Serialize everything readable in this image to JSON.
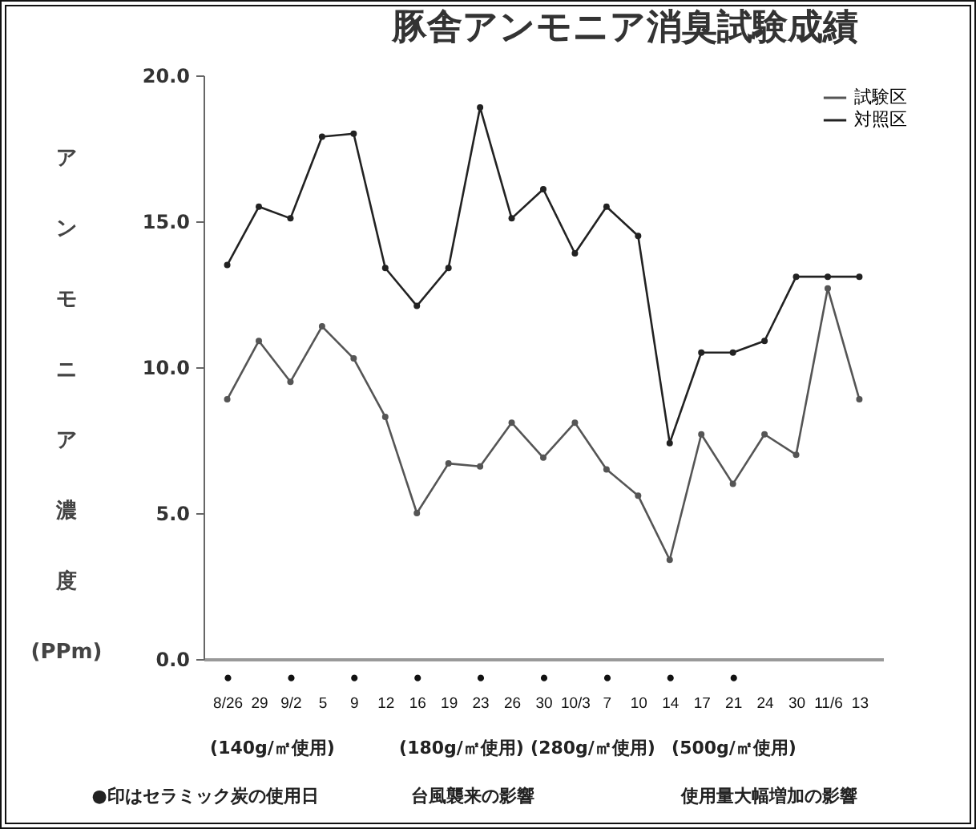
{
  "chart_data": {
    "type": "line",
    "title": "豚舎アンモニア消臭試験成績",
    "ylabel": "アンモニア濃度(PPm)",
    "categories": [
      "●\n8/26",
      "29",
      "●\n9/2",
      "5",
      "●\n9",
      "12",
      "●\n16",
      "19",
      "●\n23",
      "26",
      "●\n30",
      "10/3",
      "●\n7",
      "10",
      "●\n14",
      "17",
      "●\n21",
      "24",
      "30",
      "11/6",
      "13"
    ],
    "series": [
      {
        "name": "試験区",
        "color": "#555555",
        "values": [
          8.9,
          10.9,
          9.5,
          11.4,
          10.3,
          8.3,
          5.0,
          6.7,
          6.6,
          8.1,
          6.9,
          8.1,
          6.5,
          5.6,
          3.4,
          7.7,
          6.0,
          7.7,
          7.0,
          12.7,
          8.9
        ]
      },
      {
        "name": "対照区",
        "color": "#222222",
        "values": [
          13.5,
          15.5,
          15.1,
          17.9,
          18.0,
          13.4,
          12.1,
          13.4,
          18.9,
          15.1,
          16.1,
          13.9,
          15.5,
          14.5,
          7.4,
          10.5,
          10.5,
          10.9,
          13.1,
          13.1,
          13.1
        ]
      }
    ],
    "ylim": [
      0,
      20
    ],
    "yticks": [
      {
        "value": 0,
        "label": "0.0"
      },
      {
        "value": 5,
        "label": "5.0"
      },
      {
        "value": 10,
        "label": "10.0"
      },
      {
        "value": 15,
        "label": "15.0"
      },
      {
        "value": 20,
        "label": "20.0"
      }
    ],
    "annotations": [
      "(140g/㎡使用)",
      "(180g/㎡使用)",
      "(280g/㎡使用)",
      "(500g/㎡使用)",
      "●印はセラミック炭の使用日",
      "台風襲来の影響",
      "使用量大幅増加の影響"
    ],
    "grid": false,
    "legend": "top right",
    "marker": "circle",
    "line_style": "solid"
  }
}
